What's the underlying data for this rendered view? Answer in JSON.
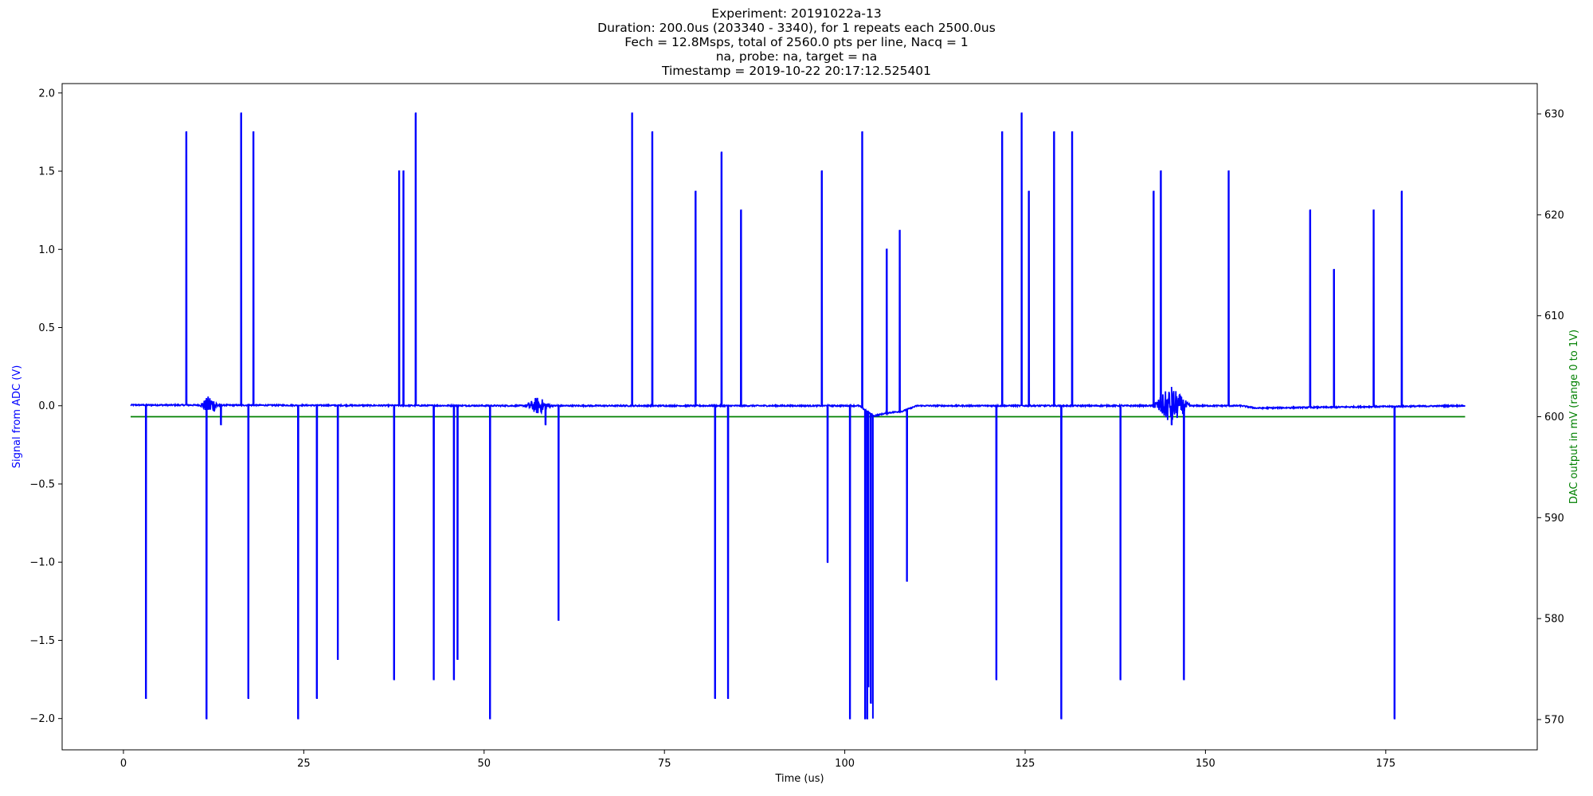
{
  "chart_data": {
    "type": "line",
    "title_lines": [
      "Experiment: 20191022a-13",
      "Duration: 200.0us (203340 - 3340), for 1 repeats each 2500.0us",
      "Fech = 12.8Msps, total of 2560.0 pts per line, Nacq = 1",
      "na, probe: na, target = na",
      "Timestamp = 2019-10-22 20:17:12.525401"
    ],
    "xlabel": "Time (us)",
    "ylabel_left": "Signal from ADC (V)",
    "ylabel_right": "DAC output in mV (range 0 to 1V)",
    "xlim": [
      -8.5,
      196
    ],
    "ylim_left": [
      -2.2,
      2.06
    ],
    "ylim_right": [
      567,
      633
    ],
    "x_ticks": [
      "0",
      "25",
      "50",
      "75",
      "100",
      "125",
      "150",
      "175"
    ],
    "y_ticks_left": [
      "−2.0",
      "−1.5",
      "−1.0",
      "−0.5",
      "0.0",
      "0.5",
      "1.0",
      "1.5",
      "2.0"
    ],
    "y_ticks_right": [
      "570",
      "580",
      "590",
      "600",
      "610",
      "620",
      "630"
    ],
    "colors": {
      "adc": "#0000ff",
      "dac": "#008000",
      "left_label": "#0000ff",
      "right_label": "#008000"
    },
    "series": [
      {
        "axis": "left",
        "baseline_points": [
          [
            1,
            0.005
          ],
          [
            55.5,
            0.0
          ],
          [
            63,
            0.0
          ],
          [
            102,
            0.0
          ],
          [
            104,
            -0.065
          ],
          [
            106,
            -0.045
          ],
          [
            108,
            -0.035
          ],
          [
            110,
            0.0
          ],
          [
            155,
            0.0
          ],
          [
            157,
            -0.015
          ],
          [
            175,
            -0.005
          ],
          [
            186,
            0.0
          ]
        ],
        "noise_bursts": [
          {
            "x_start": 10.5,
            "x_end": 13.5,
            "amplitude": 0.07
          },
          {
            "x_start": 55.5,
            "x_end": 59.5,
            "amplitude": 0.06
          },
          {
            "x_start": 142.5,
            "x_end": 148,
            "amplitude": 0.13
          }
        ],
        "dips": [
          {
            "x": 103.9,
            "y": -2.0
          },
          {
            "x": 103.3,
            "y": -1.8
          }
        ],
        "spikes": [
          [
            3.1,
            -1.87
          ],
          [
            8.7,
            1.75
          ],
          [
            11.5,
            -2.0
          ],
          [
            13.5,
            -0.12
          ],
          [
            16.3,
            1.87
          ],
          [
            17.3,
            -1.87
          ],
          [
            18.0,
            1.75
          ],
          [
            24.2,
            -2.0
          ],
          [
            26.8,
            -1.87
          ],
          [
            29.7,
            -1.62
          ],
          [
            37.5,
            -1.75
          ],
          [
            38.2,
            1.5
          ],
          [
            38.8,
            1.5
          ],
          [
            40.5,
            1.87
          ],
          [
            43.0,
            -1.75
          ],
          [
            45.8,
            -1.75
          ],
          [
            46.3,
            -1.62
          ],
          [
            50.8,
            -2.0
          ],
          [
            58.5,
            -0.12
          ],
          [
            60.3,
            -1.37
          ],
          [
            70.5,
            1.87
          ],
          [
            73.3,
            1.75
          ],
          [
            79.3,
            1.37
          ],
          [
            82.0,
            -1.87
          ],
          [
            82.9,
            1.62
          ],
          [
            83.8,
            -1.87
          ],
          [
            85.6,
            1.25
          ],
          [
            96.8,
            1.5
          ],
          [
            97.6,
            -1.0
          ],
          [
            100.7,
            -2.0
          ],
          [
            102.4,
            1.75
          ],
          [
            102.8,
            -2.0
          ],
          [
            103.1,
            -2.0
          ],
          [
            103.6,
            -1.9
          ],
          [
            105.8,
            1.0
          ],
          [
            107.6,
            1.12
          ],
          [
            108.6,
            -1.12
          ],
          [
            121.0,
            -1.75
          ],
          [
            121.8,
            1.75
          ],
          [
            124.5,
            1.87
          ],
          [
            125.5,
            1.37
          ],
          [
            129.0,
            1.75
          ],
          [
            130.0,
            -2.0
          ],
          [
            131.5,
            1.75
          ],
          [
            138.2,
            -1.75
          ],
          [
            142.8,
            1.37
          ],
          [
            143.8,
            1.5
          ],
          [
            145.3,
            -0.12
          ],
          [
            147.0,
            -1.75
          ],
          [
            153.2,
            1.5
          ],
          [
            164.5,
            1.25
          ],
          [
            167.8,
            0.87
          ],
          [
            173.3,
            1.25
          ],
          [
            176.2,
            -2.0
          ],
          [
            177.2,
            1.37
          ]
        ]
      },
      {
        "axis": "right",
        "points": [
          [
            1,
            600
          ],
          [
            186,
            600
          ]
        ]
      }
    ],
    "grid": false,
    "legend": "none"
  }
}
